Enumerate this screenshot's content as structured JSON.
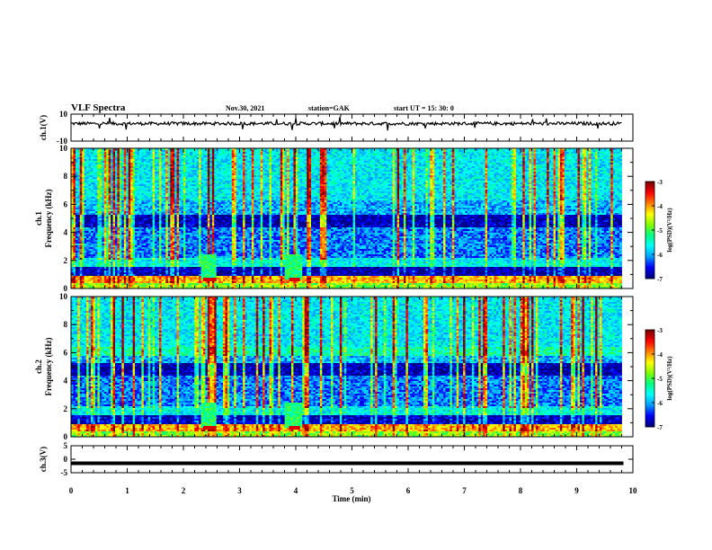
{
  "header": {
    "title": "VLF Spectra",
    "date": "Nov.30, 2021",
    "station": "station=GAK",
    "start": "start  UT =   15: 30: 0"
  },
  "chart_data": [
    {
      "type": "line",
      "panel": "ch1",
      "ylabel": "ch.1(V)",
      "ylim": [
        -10,
        10
      ],
      "yticks": [
        "10",
        "-10"
      ],
      "xlim": [
        0,
        10
      ],
      "baseline": 3,
      "noise_amplitude": 1.2
    },
    {
      "type": "heatmap",
      "panel": "ch1_spectrogram",
      "ylabel": "ch.1\nFrequency (kHz)",
      "ylim": [
        0,
        10
      ],
      "yticks": [
        "0",
        "2",
        "4",
        "6",
        "8",
        "10"
      ],
      "xlim": [
        0,
        10
      ],
      "data_end_min": 9.8,
      "colorbar": {
        "label": "log(PSD)(V²/Hz)",
        "range": [
          -7,
          -3
        ],
        "ticks": [
          "-3",
          "-4",
          "-5",
          "-6",
          "-7"
        ]
      }
    },
    {
      "type": "heatmap",
      "panel": "ch2_spectrogram",
      "ylabel": "ch.2\nFrequency (kHz)",
      "ylim": [
        0,
        10
      ],
      "yticks": [
        "0",
        "2",
        "4",
        "6",
        "8",
        "10"
      ],
      "xlim": [
        0,
        10
      ],
      "data_end_min": 9.8,
      "colorbar": {
        "label": "log(PSD)(V²/Hz)",
        "range": [
          -7,
          -3
        ],
        "ticks": [
          "-3",
          "-4",
          "-5",
          "-6",
          "-7"
        ]
      }
    },
    {
      "type": "line",
      "panel": "ch3",
      "ylabel": "ch.3(V)",
      "ylim": [
        -5,
        5
      ],
      "yticks": [
        "5",
        "0",
        "-5"
      ],
      "xlim": [
        0,
        10
      ],
      "baseline": -1.5,
      "noise_amplitude": 0
    }
  ],
  "xaxis": {
    "label": "Time  (min)",
    "ticks": [
      "0",
      "1",
      "2",
      "3",
      "4",
      "5",
      "6",
      "7",
      "8",
      "9",
      "10"
    ]
  },
  "colors": {
    "frame": "#000000",
    "colormap": [
      "#000080",
      "#0000ff",
      "#00a0ff",
      "#00ffff",
      "#00ff80",
      "#80ff00",
      "#ffff00",
      "#ff8000",
      "#ff0000",
      "#800000"
    ]
  }
}
